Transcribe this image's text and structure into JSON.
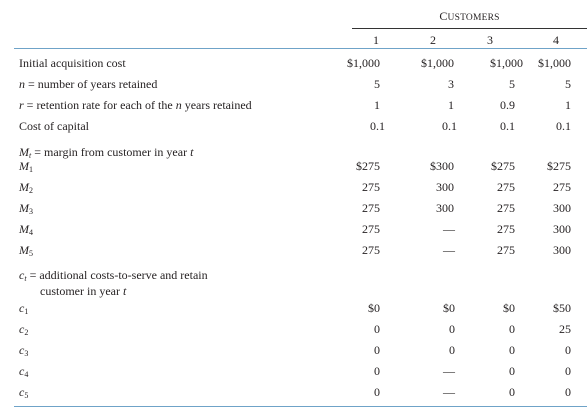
{
  "header": {
    "group_label": "Customers",
    "columns": [
      "1",
      "2",
      "3",
      "4"
    ]
  },
  "rows_top": [
    {
      "label": "Initial acquisition cost",
      "values": [
        "$1,000",
        "$1,000",
        "$1,000",
        "$1,000"
      ]
    },
    {
      "label_sym": "n",
      "label_rest": " = number of years retained",
      "values": [
        "5",
        "3",
        "5",
        "5"
      ]
    },
    {
      "label_sym": "r",
      "label_rest": " = retention rate for each of the ",
      "label_sym2": "n",
      "label_rest2": " years retained",
      "values": [
        "1",
        "1",
        "0.9",
        "1"
      ]
    },
    {
      "label": "Cost of capital",
      "values": [
        "0.1",
        "0.1",
        "0.1",
        "0.1"
      ]
    }
  ],
  "margin_section": {
    "title_sym": "M",
    "title_sub": "t",
    "title_rest": " = margin from customer in year ",
    "title_sym2": "t",
    "rows": [
      {
        "sym": "M",
        "sub": "1",
        "values": [
          "$275",
          "$300",
          "$275",
          "$275"
        ]
      },
      {
        "sym": "M",
        "sub": "2",
        "values": [
          "275",
          "300",
          "275",
          "275"
        ]
      },
      {
        "sym": "M",
        "sub": "3",
        "values": [
          "275",
          "300",
          "275",
          "300"
        ]
      },
      {
        "sym": "M",
        "sub": "4",
        "values": [
          "275",
          "—",
          "275",
          "300"
        ]
      },
      {
        "sym": "M",
        "sub": "5",
        "values": [
          "275",
          "—",
          "275",
          "300"
        ]
      }
    ]
  },
  "cost_section": {
    "title_sym": "c",
    "title_sub": "t",
    "title_rest": " = additional costs-to-serve and retain",
    "title_line2": "customer in year ",
    "title_sym2": "t",
    "rows": [
      {
        "sym": "c",
        "sub": "1",
        "values": [
          "$0",
          "$0",
          "$0",
          "$50"
        ]
      },
      {
        "sym": "c",
        "sub": "2",
        "values": [
          "0",
          "0",
          "0",
          "25"
        ]
      },
      {
        "sym": "c",
        "sub": "3",
        "values": [
          "0",
          "0",
          "0",
          "0"
        ]
      },
      {
        "sym": "c",
        "sub": "4",
        "values": [
          "0",
          "—",
          "0",
          "0"
        ]
      },
      {
        "sym": "c",
        "sub": "5",
        "values": [
          "0",
          "—",
          "0",
          "0"
        ]
      }
    ]
  }
}
